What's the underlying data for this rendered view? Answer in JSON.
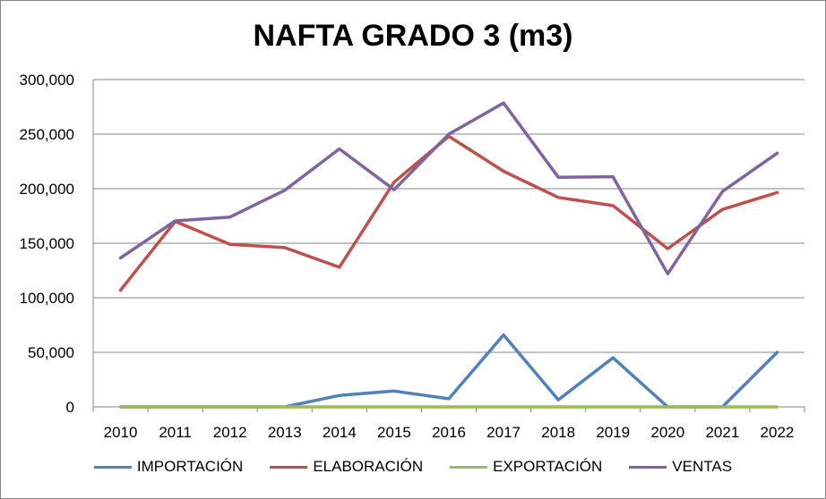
{
  "chart_data": {
    "type": "line",
    "title": "NAFTA GRADO 3 (m3)",
    "xlabel": "",
    "ylabel": "",
    "categories": [
      "2010",
      "2011",
      "2012",
      "2013",
      "2014",
      "2015",
      "2016",
      "2017",
      "2018",
      "2019",
      "2020",
      "2021",
      "2022"
    ],
    "ylim": [
      0,
      300000
    ],
    "yticks": [
      0,
      50000,
      100000,
      150000,
      200000,
      250000,
      300000
    ],
    "ytick_labels": [
      "0",
      "50,000",
      "100,000",
      "150,000",
      "200,000",
      "250,000",
      "300,000"
    ],
    "grid": true,
    "legend_position": "bottom",
    "series": [
      {
        "name": "IMPORTACIÓN",
        "color": "#4F81BD",
        "values": [
          0,
          0,
          0,
          0,
          10500,
          14500,
          7500,
          66000,
          6500,
          45000,
          0,
          0,
          50000
        ]
      },
      {
        "name": "ELABORACIÓN",
        "color": "#C0504D",
        "values": [
          107000,
          170000,
          149000,
          146000,
          128000,
          206000,
          248000,
          216000,
          192000,
          184500,
          145000,
          181000,
          196500
        ]
      },
      {
        "name": "EXPORTACIÓN",
        "color": "#9BBB59",
        "values": [
          0,
          0,
          0,
          0,
          0,
          0,
          0,
          0,
          0,
          0,
          0,
          0,
          0
        ]
      },
      {
        "name": "VENTAS",
        "color": "#8064A2",
        "values": [
          136500,
          170500,
          174000,
          198500,
          236500,
          199000,
          250000,
          278500,
          210500,
          211000,
          122000,
          197500,
          232500
        ]
      }
    ]
  }
}
